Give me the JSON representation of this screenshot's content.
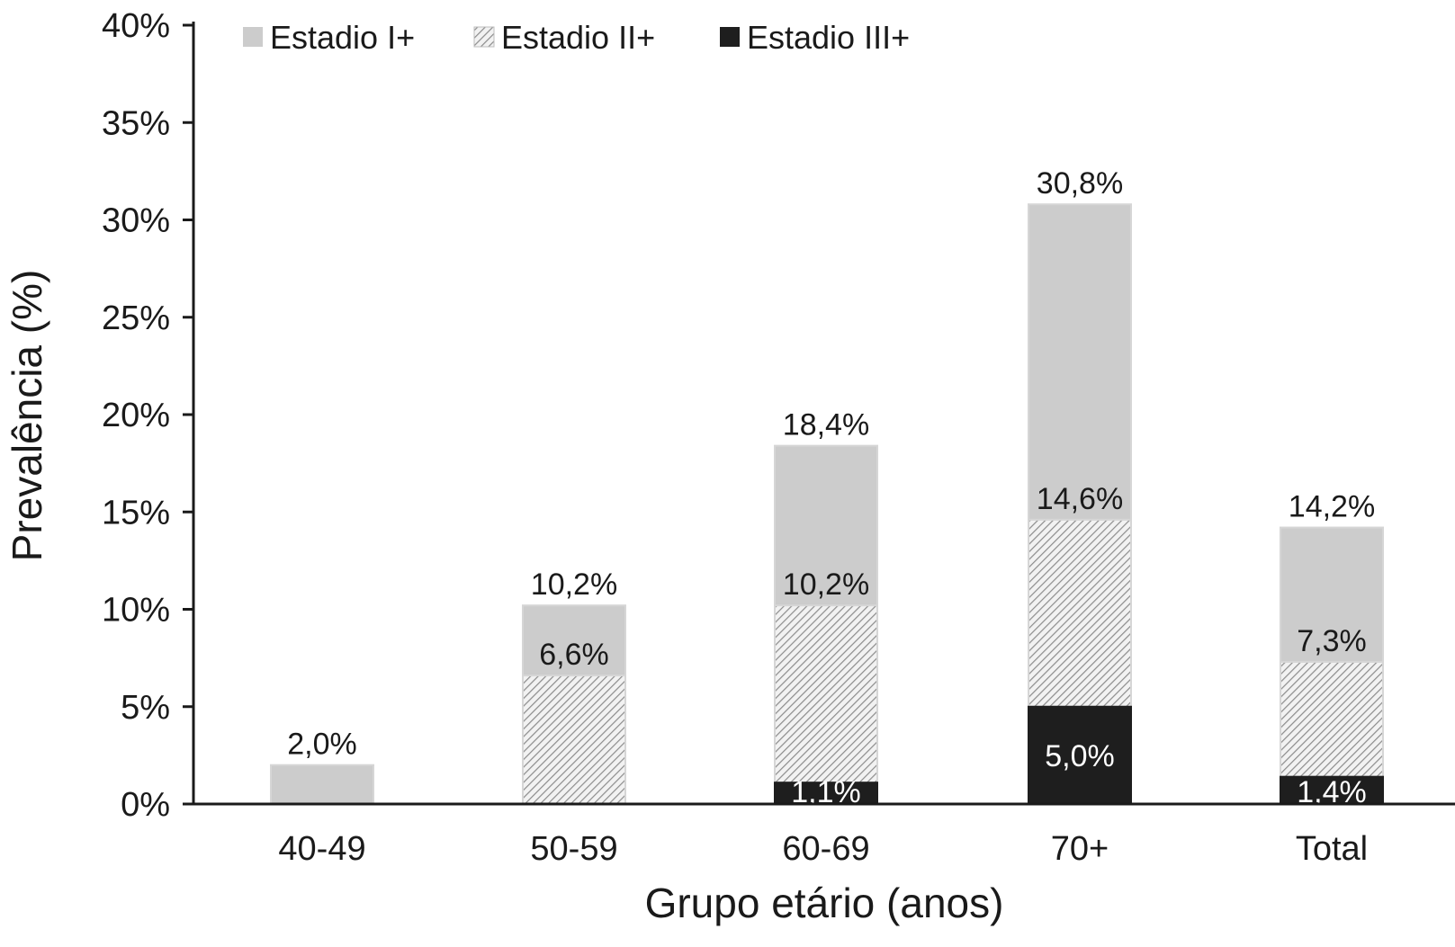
{
  "chart_data": {
    "type": "bar",
    "stacked_overlay": true,
    "categories": [
      "40-49",
      "50-59",
      "60-69",
      "70+",
      "Total"
    ],
    "series": [
      {
        "name": "Estadio I+",
        "values": [
          2.0,
          10.2,
          18.4,
          30.8,
          14.2
        ],
        "labels": [
          "2,0%",
          "10,2%",
          "18,4%",
          "30,8%",
          "14,2%"
        ],
        "color": "#cccccc",
        "pattern": "solid"
      },
      {
        "name": "Estadio II+",
        "values": [
          null,
          6.6,
          10.2,
          14.6,
          7.3
        ],
        "labels": [
          "",
          "6,6%",
          "10,2%",
          "14,6%",
          "7,3%"
        ],
        "color": "#9a9a9a",
        "pattern": "hatch"
      },
      {
        "name": "Estadio III+",
        "values": [
          null,
          null,
          1.1,
          5.0,
          1.4
        ],
        "labels": [
          "",
          "",
          "1,1%",
          "5,0%",
          "1,4%"
        ],
        "color": "#1e1e1e",
        "pattern": "solid"
      }
    ],
    "xlabel": "Grupo etário (anos)",
    "ylabel": "Prevalência (%)",
    "ylim": [
      0,
      40
    ],
    "yticks": [
      0,
      5,
      10,
      15,
      20,
      25,
      30,
      35,
      40
    ],
    "ytick_labels": [
      "0%",
      "5%",
      "10%",
      "15%",
      "20%",
      "25%",
      "30%",
      "35%",
      "40%"
    ],
    "legend_position": "top-left",
    "grid": false
  }
}
